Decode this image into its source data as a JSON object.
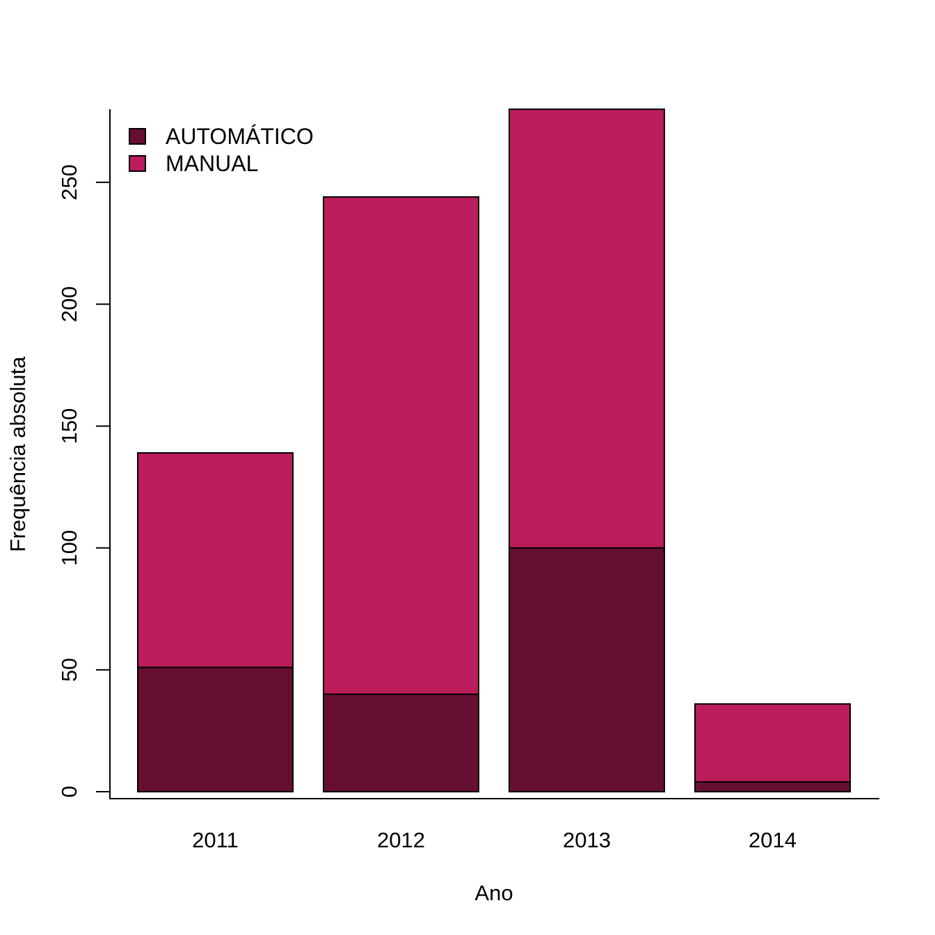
{
  "chart_data": {
    "type": "bar",
    "stacked": true,
    "categories": [
      "2011",
      "2012",
      "2013",
      "2014"
    ],
    "series": [
      {
        "name": "AUTOMÁTICO",
        "values": [
          51,
          40,
          100,
          4
        ],
        "color": "#660f33"
      },
      {
        "name": "MANUAL",
        "values": [
          88,
          204,
          180,
          32
        ],
        "color": "#bb1c5b"
      }
    ],
    "title": "",
    "xlabel": "Ano",
    "ylabel": "Frequência absoluta",
    "ylim": [
      0,
      280
    ],
    "yticks": [
      "0",
      "50",
      "100",
      "150",
      "200",
      "250"
    ],
    "grid": false,
    "legend_position": "top-left"
  }
}
